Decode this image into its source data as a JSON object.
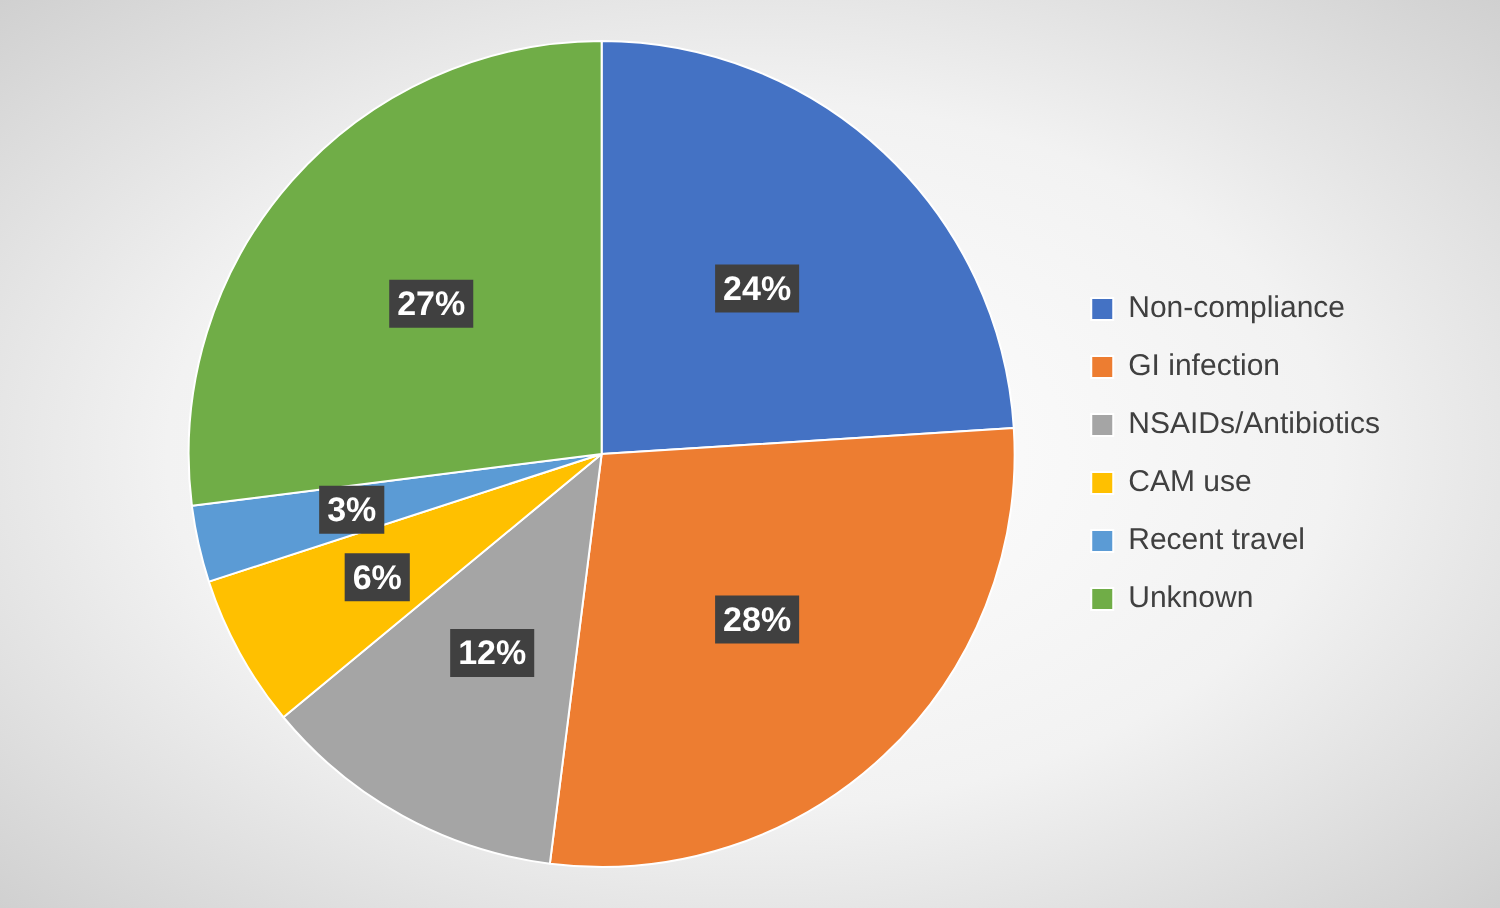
{
  "chart_data": {
    "type": "pie",
    "categories": [
      "Non-compliance",
      "GI infection",
      "NSAIDs/Antibiotics",
      "CAM use",
      "Recent travel",
      "Unknown"
    ],
    "values": [
      24,
      28,
      12,
      6,
      3,
      27
    ],
    "colors": [
      "#4472c4",
      "#ed7d31",
      "#a5a5a5",
      "#ffc000",
      "#5b9bd5",
      "#70ad47"
    ],
    "value_labels": [
      "24%",
      "28%",
      "12%",
      "6%",
      "3%",
      "27%"
    ],
    "legend": "right"
  }
}
